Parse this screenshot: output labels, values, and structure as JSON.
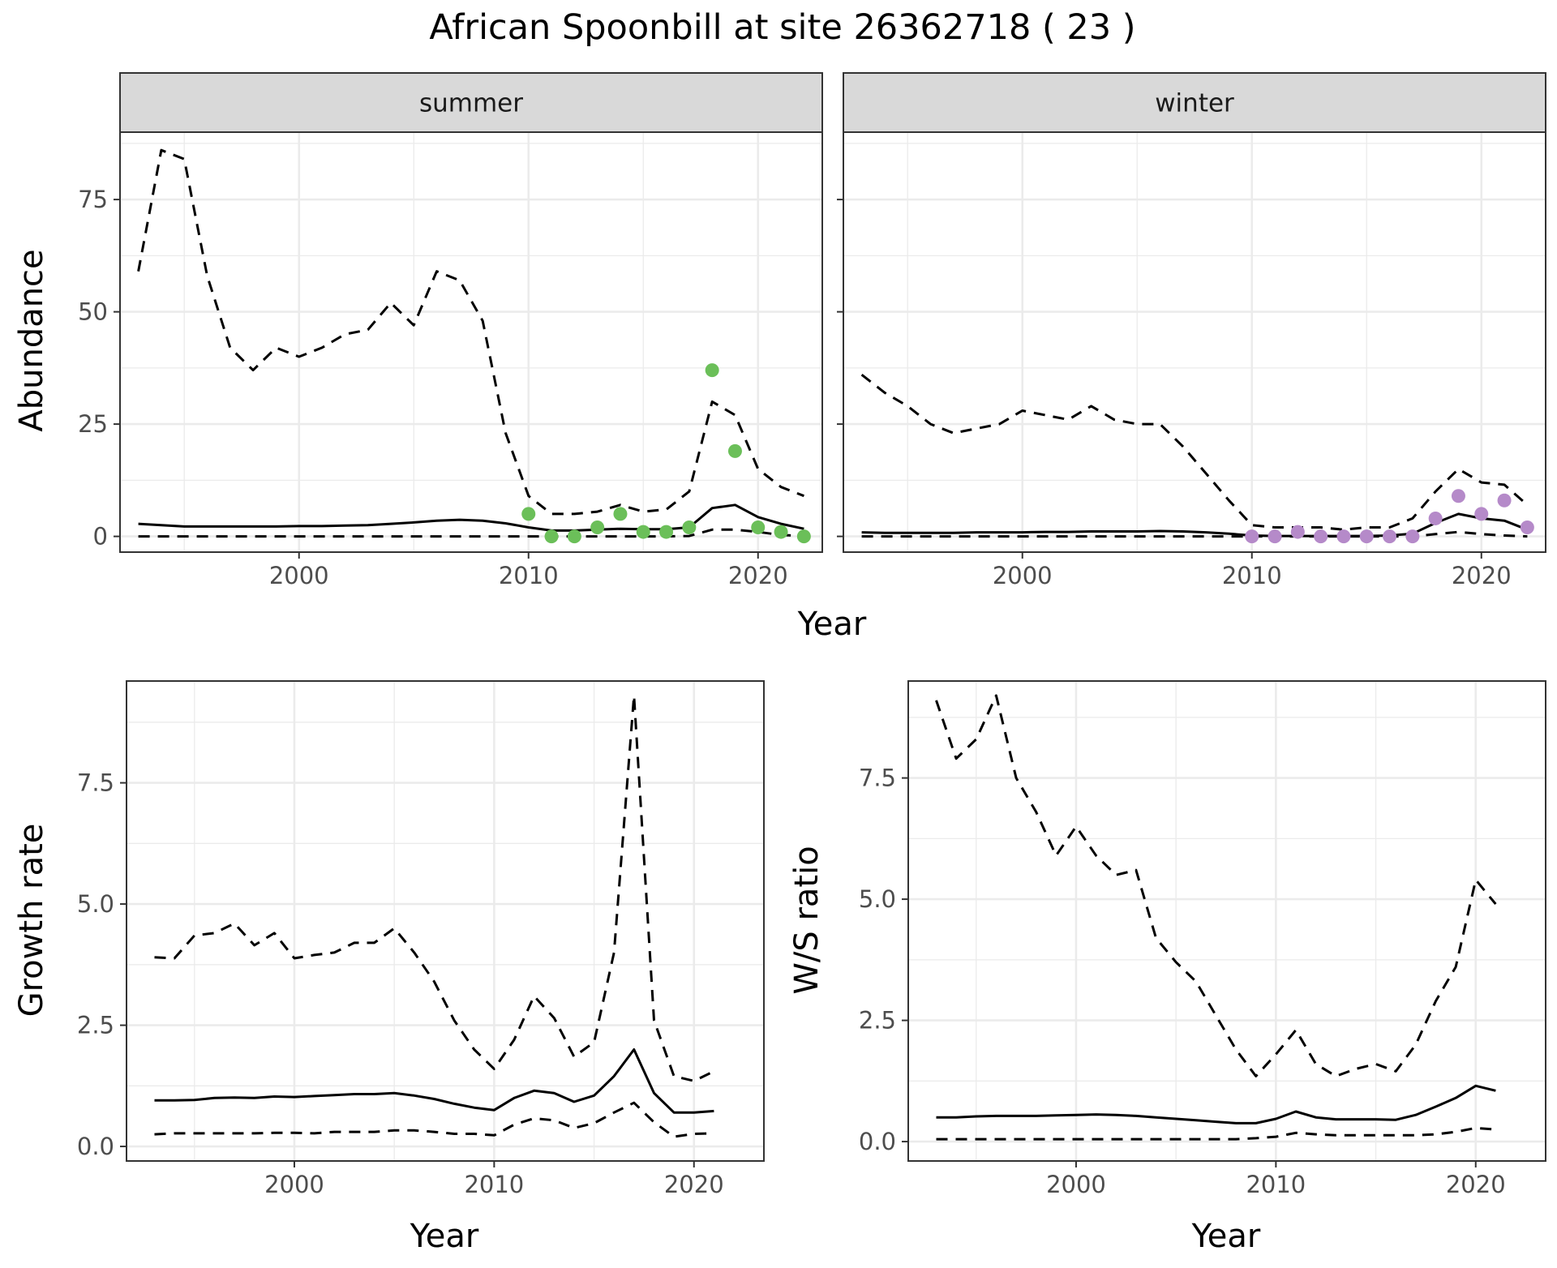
{
  "title": "African Spoonbill at site 26362718 ( 23 )",
  "colors": {
    "summer_points": "#6BBF59",
    "winter_points": "#B58AC9",
    "line": "#000000",
    "grid": "#EBEBEB",
    "strip_fill": "#D9D9D9"
  },
  "chart_data": [
    {
      "id": "summer",
      "type": "line",
      "strip": "summer",
      "xlabel": "Year",
      "ylabel": "Abundance",
      "xlim": [
        1992.2,
        2022.8
      ],
      "ylim": [
        -3.5,
        90
      ],
      "xticks": [
        2000,
        2010,
        2020
      ],
      "yticks": [
        0,
        25,
        50,
        75
      ],
      "grid": true,
      "x": [
        1993,
        1994,
        1995,
        1996,
        1997,
        1998,
        1999,
        2000,
        2001,
        2002,
        2003,
        2004,
        2005,
        2006,
        2007,
        2008,
        2009,
        2010,
        2011,
        2012,
        2013,
        2014,
        2015,
        2016,
        2017,
        2018,
        2019,
        2020,
        2021,
        2022
      ],
      "series": [
        {
          "role": "mean",
          "values": [
            2.8,
            2.5,
            2.2,
            2.2,
            2.2,
            2.2,
            2.2,
            2.3,
            2.3,
            2.4,
            2.5,
            2.8,
            3.1,
            3.5,
            3.7,
            3.5,
            2.9,
            2.0,
            1.3,
            1.3,
            1.5,
            1.7,
            1.6,
            1.6,
            2.0,
            6.3,
            7.0,
            4.3,
            2.8,
            1.7
          ]
        },
        {
          "role": "upper",
          "values": [
            59,
            86,
            84,
            58,
            42,
            37,
            42,
            40,
            42,
            45,
            46,
            52,
            47,
            59,
            57,
            48,
            23,
            9,
            5,
            5,
            5.5,
            7,
            5.5,
            6,
            10,
            30,
            27,
            15,
            11,
            9
          ]
        },
        {
          "role": "lower",
          "values": [
            0,
            0,
            0,
            0,
            0,
            0,
            0,
            0,
            0,
            0,
            0,
            0,
            0,
            0,
            0,
            0,
            0,
            0,
            0,
            0,
            0,
            0,
            0,
            0,
            0.1,
            1.5,
            1.5,
            1,
            0.3,
            0.1
          ]
        }
      ],
      "points": {
        "x": [
          2010,
          2011,
          2012,
          2013,
          2014,
          2015,
          2016,
          2017,
          2018,
          2019,
          2020,
          2021,
          2022
        ],
        "y": [
          5,
          0,
          0,
          2,
          5,
          1,
          1,
          2,
          37,
          19,
          2,
          1,
          0
        ]
      }
    },
    {
      "id": "winter",
      "type": "line",
      "strip": "winter",
      "xlabel": "Year",
      "ylabel": "",
      "xlim": [
        1992.2,
        2022.8
      ],
      "ylim": [
        -3.5,
        90
      ],
      "xticks": [
        2000,
        2010,
        2020
      ],
      "yticks": [],
      "grid": true,
      "x": [
        1993,
        1994,
        1995,
        1996,
        1997,
        1998,
        1999,
        2000,
        2001,
        2002,
        2003,
        2004,
        2005,
        2006,
        2007,
        2008,
        2009,
        2010,
        2011,
        2012,
        2013,
        2014,
        2015,
        2016,
        2017,
        2018,
        2019,
        2020,
        2021,
        2022
      ],
      "series": [
        {
          "role": "mean",
          "values": [
            0.9,
            0.8,
            0.8,
            0.8,
            0.8,
            0.9,
            0.9,
            0.9,
            1.0,
            1.0,
            1.1,
            1.1,
            1.1,
            1.2,
            1.1,
            0.9,
            0.6,
            0.2,
            0.1,
            0.1,
            0.1,
            0.1,
            0.1,
            0.2,
            0.6,
            3.0,
            5.0,
            4.0,
            3.5,
            1.5
          ]
        },
        {
          "role": "upper",
          "values": [
            36,
            32,
            29,
            25,
            23,
            24,
            25,
            28,
            27,
            26,
            29,
            26,
            25,
            25,
            20,
            14,
            8,
            2.5,
            2,
            2,
            2,
            1.5,
            2,
            2,
            4,
            10,
            15,
            12,
            11.5,
            7
          ]
        },
        {
          "role": "lower",
          "values": [
            0,
            0,
            0,
            0,
            0,
            0,
            0,
            0,
            0,
            0,
            0,
            0,
            0,
            0,
            0,
            0,
            0,
            0,
            0,
            0,
            0,
            0,
            0,
            0,
            0,
            0.5,
            1,
            0.5,
            0.2,
            0
          ]
        }
      ],
      "points": {
        "x": [
          2010,
          2011,
          2012,
          2013,
          2014,
          2015,
          2016,
          2017,
          2018,
          2019,
          2020,
          2021,
          2022
        ],
        "y": [
          0,
          0,
          1,
          0,
          0,
          0,
          0,
          0,
          4,
          9,
          5,
          8,
          2
        ]
      }
    },
    {
      "id": "growth",
      "type": "line",
      "xlabel": "Year",
      "ylabel": "Growth rate",
      "xlim": [
        1991.6,
        2023.5
      ],
      "ylim": [
        -0.3,
        9.6
      ],
      "xticks": [
        2000,
        2010,
        2020
      ],
      "yticks": [
        0.0,
        2.5,
        5.0,
        7.5
      ],
      "ytick_labels": [
        "0.0",
        "2.5",
        "5.0",
        "7.5"
      ],
      "grid": true,
      "x": [
        1993,
        1994,
        1995,
        1996,
        1997,
        1998,
        1999,
        2000,
        2001,
        2002,
        2003,
        2004,
        2005,
        2006,
        2007,
        2008,
        2009,
        2010,
        2011,
        2012,
        2013,
        2014,
        2015,
        2016,
        2017,
        2018,
        2019,
        2020,
        2021
      ],
      "series": [
        {
          "role": "mean",
          "values": [
            0.95,
            0.95,
            0.96,
            1.0,
            1.01,
            1.0,
            1.03,
            1.02,
            1.04,
            1.06,
            1.08,
            1.08,
            1.1,
            1.05,
            0.98,
            0.88,
            0.8,
            0.75,
            1.0,
            1.15,
            1.1,
            0.92,
            1.05,
            1.45,
            2.0,
            1.1,
            0.7,
            0.7,
            0.73
          ]
        },
        {
          "role": "upper",
          "values": [
            3.9,
            3.88,
            4.35,
            4.4,
            4.6,
            4.15,
            4.4,
            3.88,
            3.95,
            4.0,
            4.2,
            4.2,
            4.5,
            4.0,
            3.4,
            2.6,
            2.0,
            1.6,
            2.2,
            3.1,
            2.65,
            1.85,
            2.15,
            4.0,
            9.3,
            2.6,
            1.45,
            1.35,
            1.55
          ]
        },
        {
          "role": "lower",
          "values": [
            0.25,
            0.27,
            0.27,
            0.27,
            0.27,
            0.27,
            0.28,
            0.28,
            0.27,
            0.3,
            0.3,
            0.3,
            0.33,
            0.33,
            0.3,
            0.26,
            0.26,
            0.23,
            0.45,
            0.58,
            0.54,
            0.38,
            0.48,
            0.7,
            0.9,
            0.5,
            0.2,
            0.26,
            0.27
          ]
        }
      ]
    },
    {
      "id": "ratio",
      "type": "line",
      "xlabel": "Year",
      "ylabel": "W/S ratio",
      "xlim": [
        1991.6,
        2023.5
      ],
      "ylim": [
        -0.4,
        9.5
      ],
      "xticks": [
        2000,
        2010,
        2020
      ],
      "yticks": [
        0.0,
        2.5,
        5.0,
        7.5
      ],
      "ytick_labels": [
        "0.0",
        "2.5",
        "5.0",
        "7.5"
      ],
      "grid": true,
      "x": [
        1993,
        1994,
        1995,
        1996,
        1997,
        1998,
        1999,
        2000,
        2001,
        2002,
        2003,
        2004,
        2005,
        2006,
        2007,
        2008,
        2009,
        2010,
        2011,
        2012,
        2013,
        2014,
        2015,
        2016,
        2017,
        2018,
        2019,
        2020,
        2021
      ],
      "series": [
        {
          "role": "mean",
          "values": [
            0.5,
            0.5,
            0.52,
            0.53,
            0.53,
            0.53,
            0.54,
            0.55,
            0.56,
            0.55,
            0.53,
            0.5,
            0.47,
            0.44,
            0.41,
            0.38,
            0.38,
            0.47,
            0.62,
            0.5,
            0.46,
            0.46,
            0.46,
            0.45,
            0.55,
            0.72,
            0.9,
            1.15,
            1.05
          ]
        },
        {
          "role": "upper",
          "values": [
            9.1,
            7.9,
            8.3,
            9.2,
            7.5,
            6.8,
            5.9,
            6.5,
            5.9,
            5.5,
            5.6,
            4.2,
            3.7,
            3.3,
            2.6,
            1.9,
            1.35,
            1.8,
            2.3,
            1.6,
            1.35,
            1.5,
            1.6,
            1.45,
            2.0,
            2.9,
            3.6,
            5.4,
            4.9
          ]
        },
        {
          "role": "lower",
          "values": [
            0.05,
            0.05,
            0.05,
            0.05,
            0.05,
            0.05,
            0.05,
            0.05,
            0.05,
            0.05,
            0.05,
            0.05,
            0.05,
            0.05,
            0.05,
            0.05,
            0.07,
            0.1,
            0.18,
            0.15,
            0.13,
            0.13,
            0.13,
            0.13,
            0.13,
            0.15,
            0.2,
            0.28,
            0.25
          ]
        }
      ]
    }
  ],
  "shared_xlabel": "Year"
}
